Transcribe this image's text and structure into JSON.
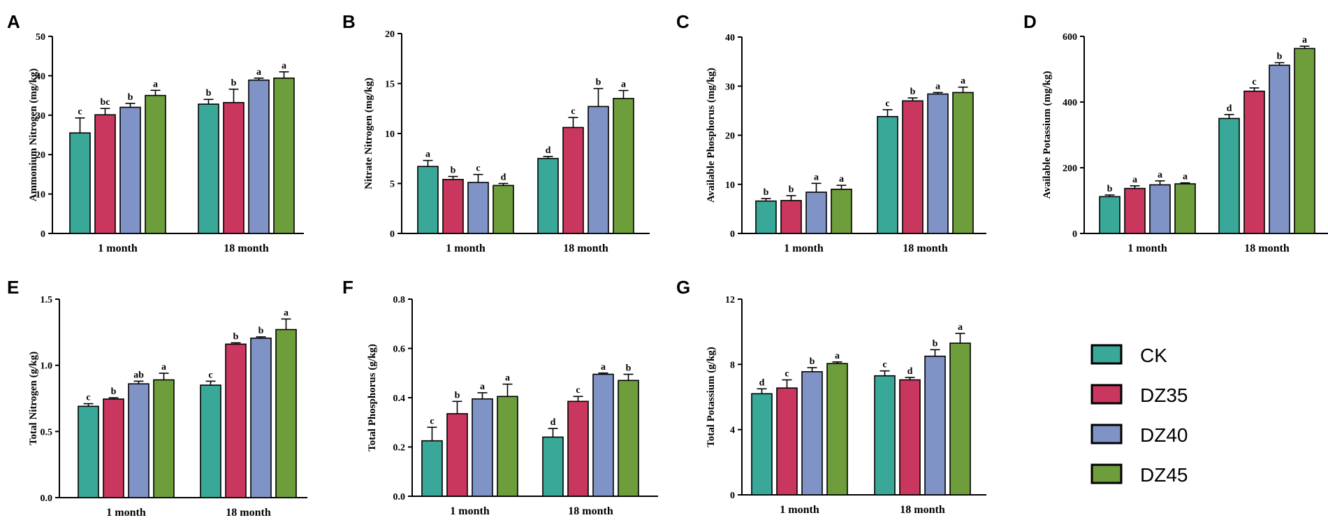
{
  "colors": {
    "CK": "#3aa899",
    "DZ35": "#c9375e",
    "DZ40": "#7f93c7",
    "DZ45": "#6e9d3c",
    "axis": "#000000"
  },
  "legend": [
    "CK",
    "DZ35",
    "DZ40",
    "DZ45"
  ],
  "chart_data": [
    {
      "panel": "A",
      "type": "bar",
      "ylabel": "Ammonium Nitrogen (mg/kg)",
      "categories": [
        "1 month",
        "18 month"
      ],
      "ylim": [
        0,
        50
      ],
      "yticks": [
        "0",
        "10",
        "20",
        "30",
        "40",
        "50"
      ],
      "series": [
        {
          "name": "CK",
          "values": [
            25.5,
            32.8
          ],
          "errors": [
            3.8,
            1.2
          ],
          "letters": [
            "c",
            "b"
          ]
        },
        {
          "name": "DZ35",
          "values": [
            30.1,
            33.2
          ],
          "errors": [
            1.6,
            3.4
          ],
          "letters": [
            "bc",
            "b"
          ]
        },
        {
          "name": "DZ40",
          "values": [
            32.0,
            38.9
          ],
          "errors": [
            1.0,
            0.5
          ],
          "letters": [
            "b",
            "a"
          ]
        },
        {
          "name": "DZ45",
          "values": [
            35.0,
            39.4
          ],
          "errors": [
            1.3,
            1.6
          ],
          "letters": [
            "a",
            "a"
          ]
        }
      ]
    },
    {
      "panel": "B",
      "type": "bar",
      "ylabel": "Nitrate Nitrogen (mg/kg)",
      "categories": [
        "1 month",
        "18 month"
      ],
      "ylim": [
        0,
        20
      ],
      "yticks": [
        "0",
        "5",
        "10",
        "15",
        "20"
      ],
      "series": [
        {
          "name": "CK",
          "values": [
            6.7,
            7.5
          ],
          "errors": [
            0.6,
            0.2
          ],
          "letters": [
            "a",
            "d"
          ]
        },
        {
          "name": "DZ35",
          "values": [
            5.4,
            10.6
          ],
          "errors": [
            0.3,
            1.0
          ],
          "letters": [
            "b",
            "c"
          ]
        },
        {
          "name": "DZ40",
          "values": [
            5.1,
            12.7
          ],
          "errors": [
            0.8,
            1.8
          ],
          "letters": [
            "c",
            "b"
          ]
        },
        {
          "name": "DZ45",
          "values": [
            4.8,
            13.5
          ],
          "errors": [
            0.2,
            0.8
          ],
          "letters": [
            "d",
            "a"
          ]
        }
      ]
    },
    {
      "panel": "C",
      "type": "bar",
      "ylabel": "Available Phosphorus (mg/kg)",
      "categories": [
        "1 month",
        "18 month"
      ],
      "ylim": [
        0,
        40
      ],
      "yticks": [
        "0",
        "10",
        "20",
        "30",
        "40"
      ],
      "series": [
        {
          "name": "CK",
          "values": [
            6.6,
            23.8
          ],
          "errors": [
            0.5,
            1.4
          ],
          "letters": [
            "b",
            "c"
          ]
        },
        {
          "name": "DZ35",
          "values": [
            6.7,
            27.0
          ],
          "errors": [
            1.0,
            0.6
          ],
          "letters": [
            "b",
            "b"
          ]
        },
        {
          "name": "DZ40",
          "values": [
            8.4,
            28.4
          ],
          "errors": [
            1.8,
            0.3
          ],
          "letters": [
            "a",
            "a"
          ]
        },
        {
          "name": "DZ45",
          "values": [
            9.0,
            28.7
          ],
          "errors": [
            0.8,
            1.1
          ],
          "letters": [
            "a",
            "a"
          ]
        }
      ]
    },
    {
      "panel": "D",
      "type": "bar",
      "ylabel": "Available Potassium (mg/kg)",
      "categories": [
        "1 month",
        "18 month"
      ],
      "ylim": [
        0,
        600
      ],
      "yticks": [
        "0",
        "200",
        "400",
        "600"
      ],
      "series": [
        {
          "name": "CK",
          "values": [
            112,
            350
          ],
          "errors": [
            5,
            12
          ],
          "letters": [
            "b",
            "d"
          ]
        },
        {
          "name": "DZ35",
          "values": [
            137,
            433
          ],
          "errors": [
            8,
            10
          ],
          "letters": [
            "a",
            "c"
          ]
        },
        {
          "name": "DZ40",
          "values": [
            148,
            512
          ],
          "errors": [
            12,
            8
          ],
          "letters": [
            "a",
            "b"
          ]
        },
        {
          "name": "DZ45",
          "values": [
            151,
            563
          ],
          "errors": [
            3,
            7
          ],
          "letters": [
            "a",
            "a"
          ]
        }
      ]
    },
    {
      "panel": "E",
      "type": "bar",
      "ylabel": "Total Nitrogen (g/kg)",
      "categories": [
        "1 month",
        "18 month"
      ],
      "ylim": [
        0,
        1.5
      ],
      "yticks": [
        "0.0",
        "0.5",
        "1.0",
        "1.5"
      ],
      "series": [
        {
          "name": "CK",
          "values": [
            0.69,
            0.85
          ],
          "errors": [
            0.02,
            0.03
          ],
          "letters": [
            "c",
            "c"
          ]
        },
        {
          "name": "DZ35",
          "values": [
            0.745,
            1.16
          ],
          "errors": [
            0.01,
            0.01
          ],
          "letters": [
            "b",
            "b"
          ]
        },
        {
          "name": "DZ40",
          "values": [
            0.86,
            1.205
          ],
          "errors": [
            0.02,
            0.01
          ],
          "letters": [
            "ab",
            "b"
          ]
        },
        {
          "name": "DZ45",
          "values": [
            0.89,
            1.27
          ],
          "errors": [
            0.05,
            0.08
          ],
          "letters": [
            "a",
            "a"
          ]
        }
      ]
    },
    {
      "panel": "F",
      "type": "bar",
      "ylabel": "Total Phosphorus (g/kg)",
      "categories": [
        "1 month",
        "18 month"
      ],
      "ylim": [
        0,
        0.8
      ],
      "yticks": [
        "0.0",
        "0.2",
        "0.4",
        "0.6",
        "0.8"
      ],
      "series": [
        {
          "name": "CK",
          "values": [
            0.225,
            0.24
          ],
          "errors": [
            0.055,
            0.035
          ],
          "letters": [
            "c",
            "d"
          ]
        },
        {
          "name": "DZ35",
          "values": [
            0.335,
            0.385
          ],
          "errors": [
            0.05,
            0.02
          ],
          "letters": [
            "b",
            "c"
          ]
        },
        {
          "name": "DZ40",
          "values": [
            0.395,
            0.495
          ],
          "errors": [
            0.025,
            0.005
          ],
          "letters": [
            "a",
            "a"
          ]
        },
        {
          "name": "DZ45",
          "values": [
            0.405,
            0.47
          ],
          "errors": [
            0.05,
            0.025
          ],
          "letters": [
            "a",
            "b"
          ]
        }
      ]
    },
    {
      "panel": "G",
      "type": "bar",
      "ylabel": "Total Potassium (g/kg)",
      "categories": [
        "1 month",
        "18 month"
      ],
      "ylim": [
        0,
        12
      ],
      "yticks": [
        "0",
        "4",
        "8",
        "12"
      ],
      "series": [
        {
          "name": "CK",
          "values": [
            6.2,
            7.3
          ],
          "errors": [
            0.3,
            0.3
          ],
          "letters": [
            "d",
            "c"
          ]
        },
        {
          "name": "DZ35",
          "values": [
            6.55,
            7.05
          ],
          "errors": [
            0.5,
            0.15
          ],
          "letters": [
            "c",
            "d"
          ]
        },
        {
          "name": "DZ40",
          "values": [
            7.55,
            8.5
          ],
          "errors": [
            0.25,
            0.4
          ],
          "letters": [
            "b",
            "b"
          ]
        },
        {
          "name": "DZ45",
          "values": [
            8.05,
            9.3
          ],
          "errors": [
            0.1,
            0.6
          ],
          "letters": [
            "a",
            "a"
          ]
        }
      ]
    }
  ]
}
